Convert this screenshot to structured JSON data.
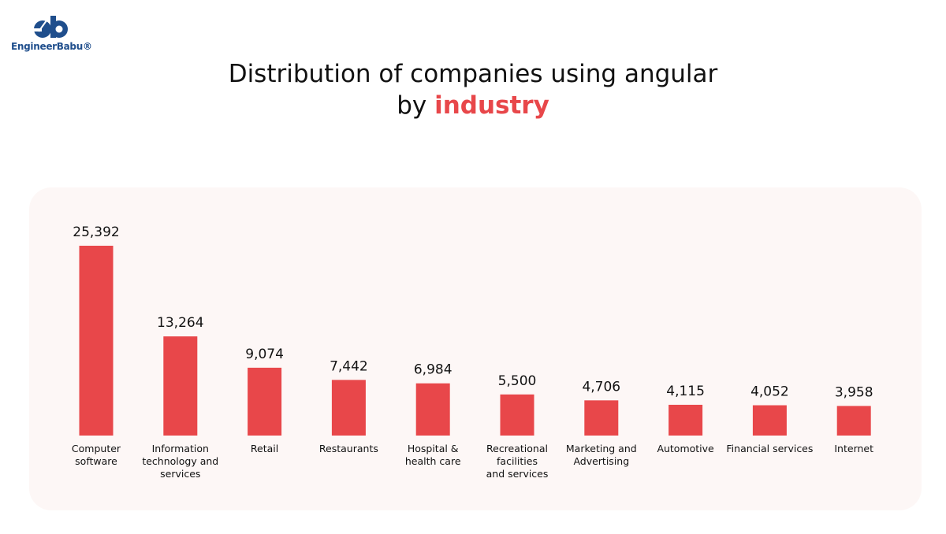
{
  "brand": {
    "name": "EngineerBabu®",
    "primary_color": "#1f4e8c"
  },
  "title": {
    "line1": "Distribution of companies using angular",
    "line2_prefix": "by ",
    "line2_highlight": "industry",
    "highlight_color": "#e8474a"
  },
  "chart_data": {
    "type": "bar",
    "title": "Distribution of companies using angular by industry",
    "categories": [
      [
        "Computer",
        "software"
      ],
      [
        "Information",
        "technology and",
        "services"
      ],
      [
        "Retail"
      ],
      [
        "Restaurants"
      ],
      [
        "Hospital &",
        "health care"
      ],
      [
        "Recreational",
        "facilities",
        "and services"
      ],
      [
        "Marketing and",
        "Advertising"
      ],
      [
        "Automotive"
      ],
      [
        "Financial services"
      ],
      [
        "Internet"
      ]
    ],
    "values": [
      25392,
      13264,
      9074,
      7442,
      6984,
      5500,
      4706,
      4115,
      4052,
      3958
    ],
    "value_labels": [
      "25,392",
      "13,264",
      "9,074",
      "7,442",
      "6,984",
      "5,500",
      "4,706",
      "4,115",
      "4,052",
      "3,958"
    ],
    "bar_color": "#e8474a",
    "background_color": "#fdf7f6",
    "grid": false,
    "axes_visible": false,
    "ylim": [
      0,
      25392
    ]
  }
}
